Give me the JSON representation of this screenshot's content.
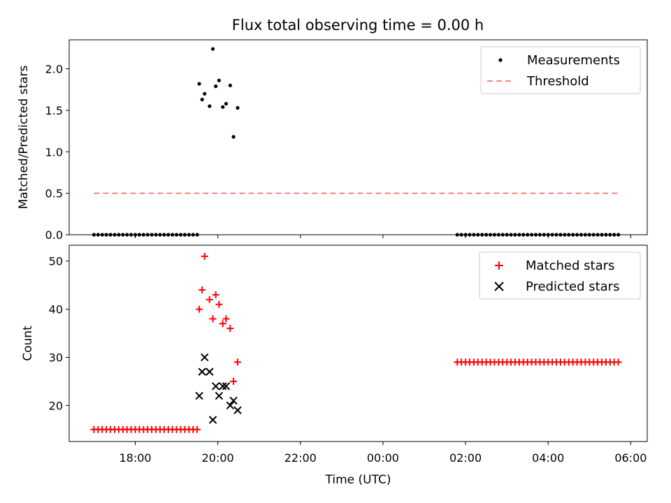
{
  "chart_data": [
    {
      "type": "scatter",
      "title": "Flux total observing time = 0.00 h",
      "xlabel": "",
      "ylabel": "Matched/Predicted stars",
      "xlim": [
        16.4,
        30.4
      ],
      "ylim": [
        0,
        2.35
      ],
      "yticks": [
        0.0,
        0.5,
        1.0,
        1.5,
        2.0
      ],
      "ytick_labels": [
        "0.0",
        "0.5",
        "1.0",
        "1.5",
        "2.0"
      ],
      "xticks": [
        18,
        20,
        22,
        24,
        26,
        28,
        30
      ],
      "xtick_labels": [
        "",
        "",
        "",
        "",
        "",
        "",
        ""
      ],
      "legend": {
        "placement": "top-right",
        "entries": [
          "Measurements",
          "Threshold"
        ]
      },
      "series": [
        {
          "name": "Measurements",
          "kind": "scatter",
          "marker": "dot",
          "color": "#000000",
          "x": [
            19.55,
            19.62,
            19.68,
            19.8,
            19.88,
            19.95,
            20.03,
            20.12,
            20.2,
            20.3,
            20.38,
            20.48
          ],
          "y": [
            1.82,
            1.63,
            1.7,
            1.55,
            2.24,
            1.79,
            1.86,
            1.54,
            1.58,
            1.8,
            1.18,
            1.53
          ],
          "zero_runs": [
            {
              "start": 17.0,
              "end": 19.5,
              "step": 0.1
            },
            {
              "start": 25.8,
              "end": 29.7,
              "step": 0.1
            }
          ]
        },
        {
          "name": "Threshold",
          "kind": "line",
          "style": "dashed",
          "color": "#ff8080",
          "x": [
            17.0,
            29.7
          ],
          "y": [
            0.5,
            0.5
          ]
        }
      ]
    },
    {
      "type": "scatter",
      "title": "",
      "xlabel": "Time (UTC)",
      "ylabel": "Count",
      "xlim": [
        16.4,
        30.4
      ],
      "ylim": [
        12.5,
        53.3
      ],
      "yticks": [
        20,
        30,
        40,
        50
      ],
      "ytick_labels": [
        "20",
        "30",
        "40",
        "50"
      ],
      "xticks": [
        18,
        20,
        22,
        24,
        26,
        28,
        30
      ],
      "xtick_labels": [
        "18:00",
        "20:00",
        "22:00",
        "00:00",
        "02:00",
        "04:00",
        "06:00"
      ],
      "legend": {
        "placement": "top-right",
        "entries": [
          "Matched stars",
          "Predicted stars"
        ]
      },
      "series": [
        {
          "name": "Matched stars",
          "kind": "scatter",
          "marker": "plus",
          "color": "#ff0000",
          "x": [
            19.55,
            19.62,
            19.68,
            19.8,
            19.88,
            19.95,
            20.03,
            20.12,
            20.2,
            20.3,
            20.38,
            20.48
          ],
          "y": [
            40,
            44,
            51,
            42,
            38,
            43,
            41,
            37,
            38,
            36,
            25,
            29
          ],
          "constant_runs": [
            {
              "start": 17.0,
              "end": 19.5,
              "step": 0.1,
              "value": 15
            },
            {
              "start": 25.8,
              "end": 29.7,
              "step": 0.1,
              "value": 29
            }
          ]
        },
        {
          "name": "Predicted stars",
          "kind": "scatter",
          "marker": "x",
          "color": "#000000",
          "x": [
            19.55,
            19.62,
            19.68,
            19.8,
            19.88,
            19.95,
            20.03,
            20.12,
            20.2,
            20.3,
            20.38,
            20.48
          ],
          "y": [
            22,
            27,
            30,
            27,
            17,
            24,
            22,
            24,
            24,
            20,
            21,
            19
          ]
        }
      ]
    }
  ]
}
